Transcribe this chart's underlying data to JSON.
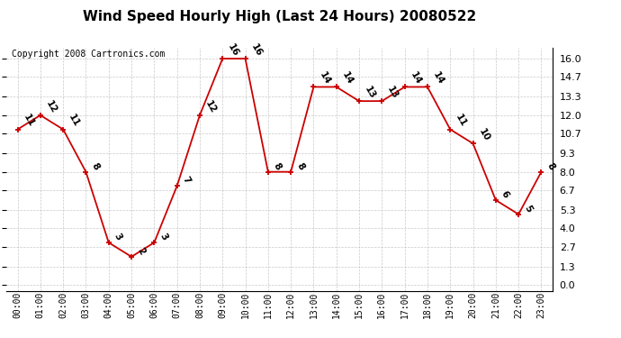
{
  "title": "Wind Speed Hourly High (Last 24 Hours) 20080522",
  "copyright": "Copyright 2008 Cartronics.com",
  "hours": [
    "00:00",
    "01:00",
    "02:00",
    "03:00",
    "04:00",
    "05:00",
    "06:00",
    "07:00",
    "08:00",
    "09:00",
    "10:00",
    "11:00",
    "12:00",
    "13:00",
    "14:00",
    "15:00",
    "16:00",
    "17:00",
    "18:00",
    "19:00",
    "20:00",
    "21:00",
    "22:00",
    "23:00"
  ],
  "values": [
    11,
    12,
    11,
    8,
    3,
    2,
    3,
    7,
    12,
    16,
    16,
    8,
    8,
    14,
    14,
    13,
    13,
    14,
    14,
    11,
    10,
    6,
    5,
    8
  ],
  "line_color": "#cc0000",
  "marker_color": "#cc0000",
  "bg_color": "#ffffff",
  "grid_color": "#bbbbbb",
  "title_fontsize": 11,
  "copyright_fontsize": 7,
  "label_fontsize": 7.5,
  "yticks": [
    0.0,
    1.3,
    2.7,
    4.0,
    5.3,
    6.7,
    8.0,
    9.3,
    10.7,
    12.0,
    13.3,
    14.7,
    16.0
  ],
  "ylim": [
    -0.4,
    16.8
  ]
}
